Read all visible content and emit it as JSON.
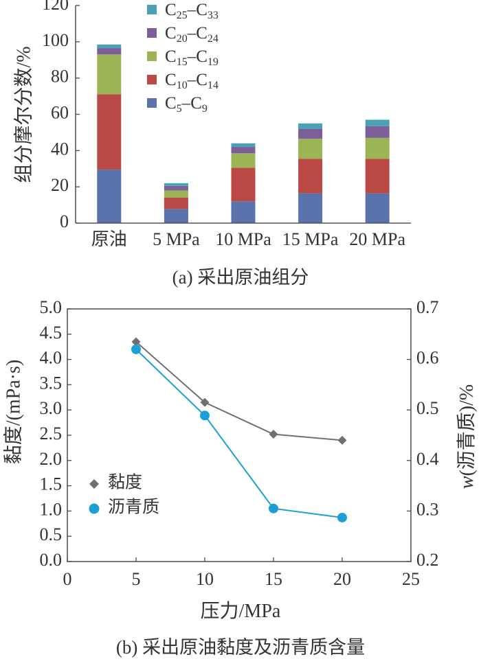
{
  "chart_data": [
    {
      "type": "bar",
      "stacked": true,
      "ylabel": "组分摩尔分数/%",
      "ylim": [
        0,
        120
      ],
      "yticks": [
        0,
        20,
        40,
        60,
        80,
        100,
        120
      ],
      "categories": [
        "原油",
        "5 MPa",
        "10 MPa",
        "15 MPa",
        "20 MPa"
      ],
      "caption": "(a) 采出原油组分",
      "legend_position": "top-center",
      "series": [
        {
          "name": "C5–C9",
          "name_base": "C",
          "name_sub1": "5",
          "name_mid": "–C",
          "name_sub2": "9",
          "color": "#5b73ad",
          "values": [
            29.5,
            7.8,
            12,
            16.5,
            16.5
          ]
        },
        {
          "name": "C10–C14",
          "name_base": "C",
          "name_sub1": "10",
          "name_mid": "–C",
          "name_sub2": "14",
          "color": "#bb4a47",
          "values": [
            41.5,
            6.2,
            18.5,
            19,
            19
          ]
        },
        {
          "name": "C15–C19",
          "name_base": "C",
          "name_sub1": "15",
          "name_mid": "–C",
          "name_sub2": "19",
          "color": "#9bb556",
          "values": [
            22,
            4,
            8,
            11,
            11.5
          ]
        },
        {
          "name": "C20–C24",
          "name_base": "C",
          "name_sub1": "20",
          "name_mid": "–C",
          "name_sub2": "24",
          "color": "#7c5f99",
          "values": [
            3.5,
            2.5,
            3.5,
            5.5,
            6.5
          ]
        },
        {
          "name": "C25–C33",
          "name_base": "C",
          "name_sub1": "25",
          "name_mid": "–C",
          "name_sub2": "33",
          "color": "#4aa1b6",
          "values": [
            2,
            1.5,
            2,
            3,
            3.5
          ]
        }
      ]
    },
    {
      "type": "line",
      "xlabel": "压力/MPa",
      "ylabel_left": "黏度/(mPa·s)",
      "ylabel_right_italic": "w",
      "ylabel_right_rest": "(沥青质)/%",
      "xlim": [
        0,
        25
      ],
      "xticks": [
        0,
        5,
        10,
        15,
        20,
        25
      ],
      "ylim_left": [
        0,
        5
      ],
      "yticks_left": [
        "0.0",
        "0.5",
        "1.0",
        "1.5",
        "2.0",
        "2.5",
        "3.0",
        "3.5",
        "4.0",
        "4.5",
        "5.0"
      ],
      "ylim_right": [
        0.2,
        0.7
      ],
      "yticks_right": [
        "0.2",
        "0.3",
        "0.4",
        "0.5",
        "0.6",
        "0.7"
      ],
      "caption": "(b) 采出原油黏度及沥青质含量",
      "legend_position": "middle-left",
      "series": [
        {
          "name": "黏度",
          "axis": "left",
          "marker": "diamond",
          "color": "#707070",
          "x": [
            5,
            10,
            15,
            20
          ],
          "y": [
            4.35,
            3.15,
            2.52,
            2.4
          ]
        },
        {
          "name": "沥青质",
          "axis": "right",
          "marker": "circle",
          "color": "#1aa0d6",
          "x": [
            5,
            10,
            15,
            20
          ],
          "y": [
            0.62,
            0.489,
            0.305,
            0.287
          ]
        }
      ]
    }
  ]
}
